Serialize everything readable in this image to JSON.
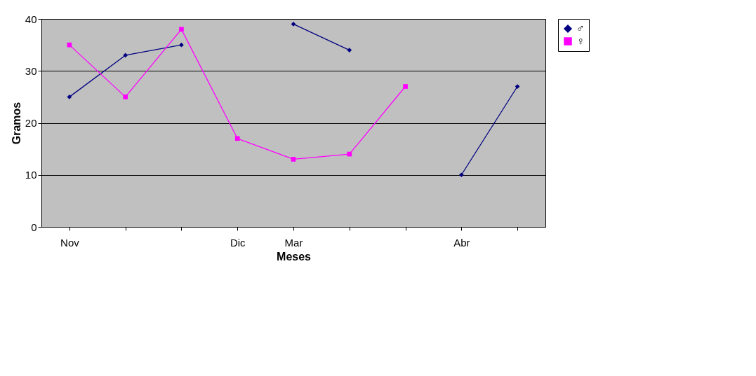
{
  "chart_data": {
    "type": "line",
    "xlabel": "Meses",
    "ylabel": "Gramos",
    "categories": [
      "Nov",
      null,
      null,
      "Dic",
      "Mar",
      null,
      null,
      "Abr",
      null
    ],
    "series": [
      {
        "name": "♂",
        "color": "#000080",
        "marker": "diamond",
        "values": [
          25,
          33,
          35,
          null,
          39,
          34,
          null,
          10,
          27
        ]
      },
      {
        "name": "♀",
        "color": "#ff00ff",
        "marker": "square",
        "values": [
          35,
          25,
          38,
          17,
          13,
          14,
          27,
          null,
          null
        ]
      }
    ],
    "ylim": [
      0,
      40
    ],
    "yticks": [
      0,
      10,
      20,
      30,
      40
    ],
    "grid": "y",
    "legend": "right",
    "line_style": "solid"
  }
}
